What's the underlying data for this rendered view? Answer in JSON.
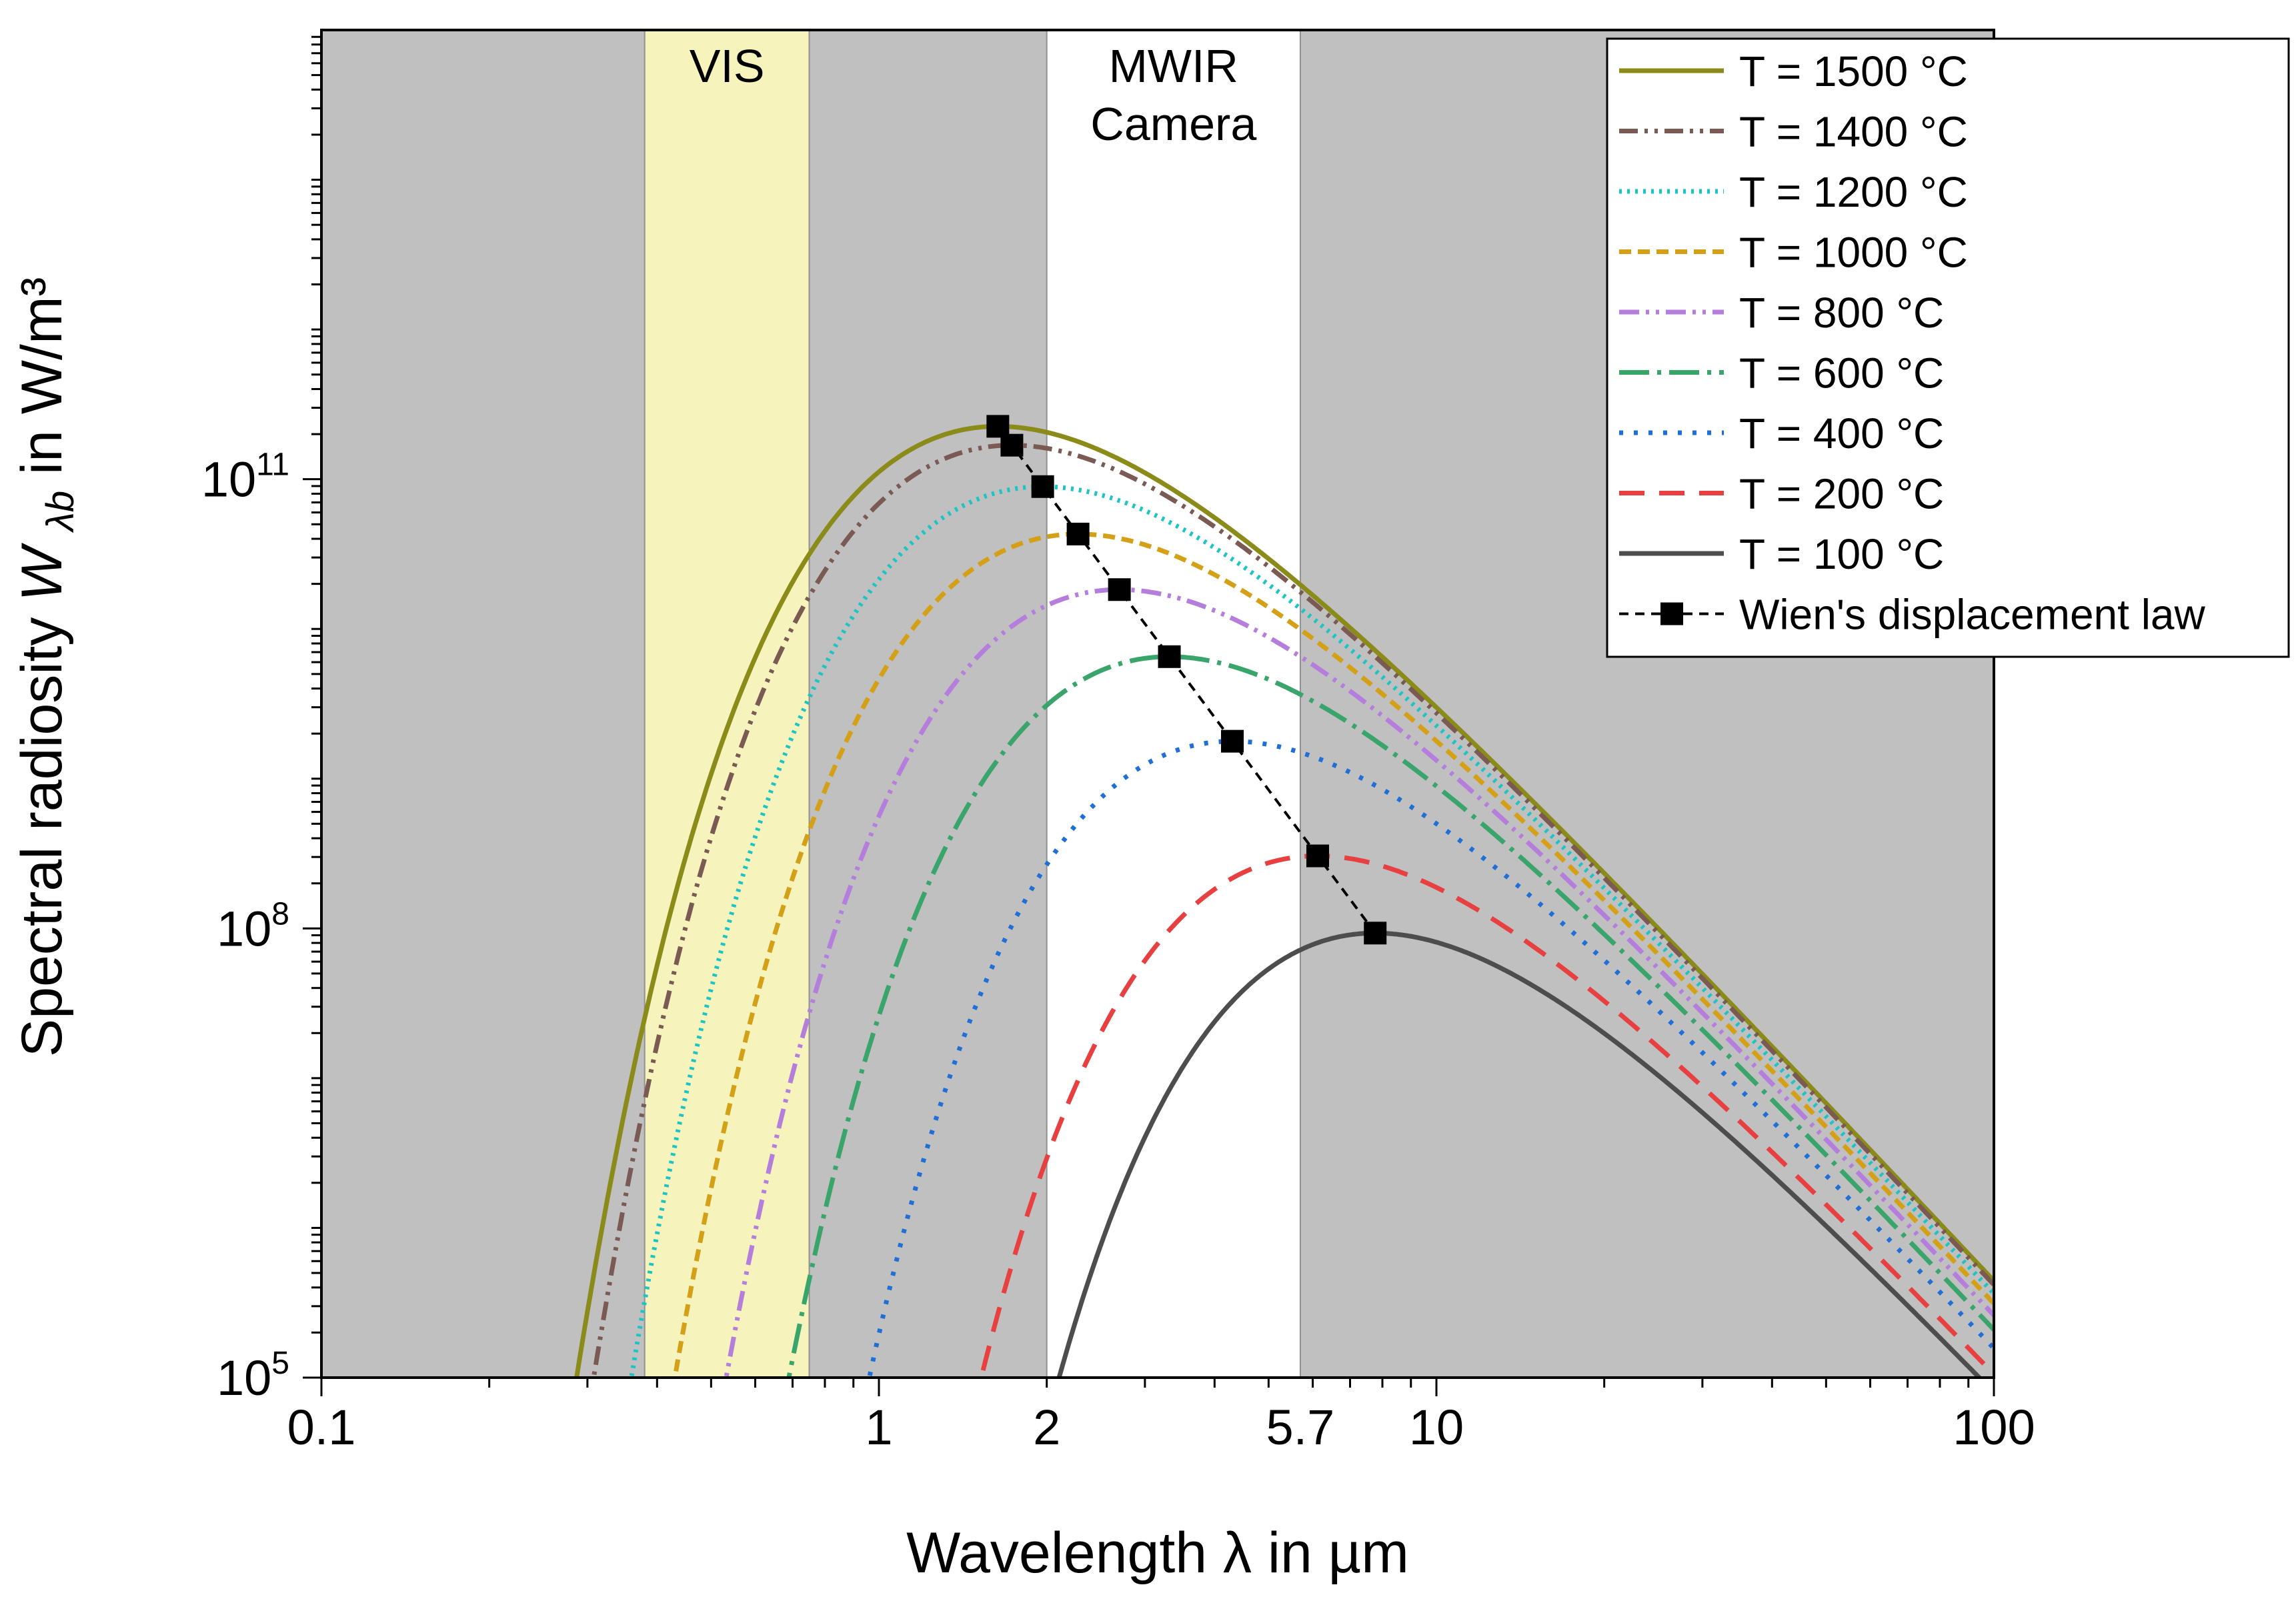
{
  "chart_data": {
    "type": "line",
    "xlabel": "Wavelength λ in µm",
    "ylabel_prefix": "Spectral radiosity ",
    "ylabel_symbol": "W",
    "ylabel_subscript": "λb",
    "ylabel_suffix": " in W/m³",
    "x_scale": "log",
    "y_scale": "log",
    "xlim": [
      0.1,
      100
    ],
    "ylim": [
      100000,
      100000000000000
    ],
    "x_ticks": [
      {
        "value": 0.1,
        "label": "0.1"
      },
      {
        "value": 1,
        "label": "1"
      },
      {
        "value": 2,
        "label": "2"
      },
      {
        "value": 5.7,
        "label": "5.7"
      },
      {
        "value": 10,
        "label": "10"
      },
      {
        "value": 100,
        "label": "100"
      }
    ],
    "y_ticks": [
      {
        "value": 100000,
        "base": "10",
        "exp": "5"
      },
      {
        "value": 100000000,
        "base": "10",
        "exp": "8"
      },
      {
        "value": 100000000000,
        "base": "10",
        "exp": "11"
      }
    ],
    "background_color": "#c0c0c0",
    "bands": [
      {
        "label": "VIS",
        "label2": "",
        "from": 0.38,
        "to": 0.75,
        "color": "#f7f3bd"
      },
      {
        "label": "MWIR",
        "label2": "Camera",
        "from": 2.0,
        "to": 5.7,
        "color": "#ffffff"
      }
    ],
    "series": [
      {
        "name": "T = 1500 °C",
        "temp_c": 1500,
        "color": "#8b8b1a",
        "dash": "",
        "width": 7
      },
      {
        "name": "T = 1400 °C",
        "temp_c": 1400,
        "color": "#7a5a52",
        "dash": "28 10 5 10 5 10",
        "width": 7
      },
      {
        "name": "T = 1200 °C",
        "temp_c": 1200,
        "color": "#1cc4c4",
        "dash": "4 8",
        "width": 7
      },
      {
        "name": "T = 1000 °C",
        "temp_c": 1000,
        "color": "#d4a017",
        "dash": "18 10",
        "width": 7
      },
      {
        "name": "T = 800 °C",
        "temp_c": 800,
        "color": "#b57edc",
        "dash": "30 10 5 10 5 10",
        "width": 7
      },
      {
        "name": "T = 600 °C",
        "temp_c": 600,
        "color": "#3aa56b",
        "dash": "45 12 6 12",
        "width": 7
      },
      {
        "name": "T = 400 °C",
        "temp_c": 400,
        "color": "#1f6fd6",
        "dash": "6 16",
        "width": 7
      },
      {
        "name": "T = 200 °C",
        "temp_c": 200,
        "color": "#e84040",
        "dash": "38 22",
        "width": 7
      },
      {
        "name": "T = 100 °C",
        "temp_c": 100,
        "color": "#4d4d4d",
        "dash": "",
        "width": 7
      }
    ],
    "wien": {
      "name": "Wien's displacement law",
      "color": "#000000",
      "temps_c": [
        1500,
        1400,
        1200,
        1000,
        800,
        600,
        400,
        200,
        100
      ]
    },
    "legend_position": "top-right"
  }
}
